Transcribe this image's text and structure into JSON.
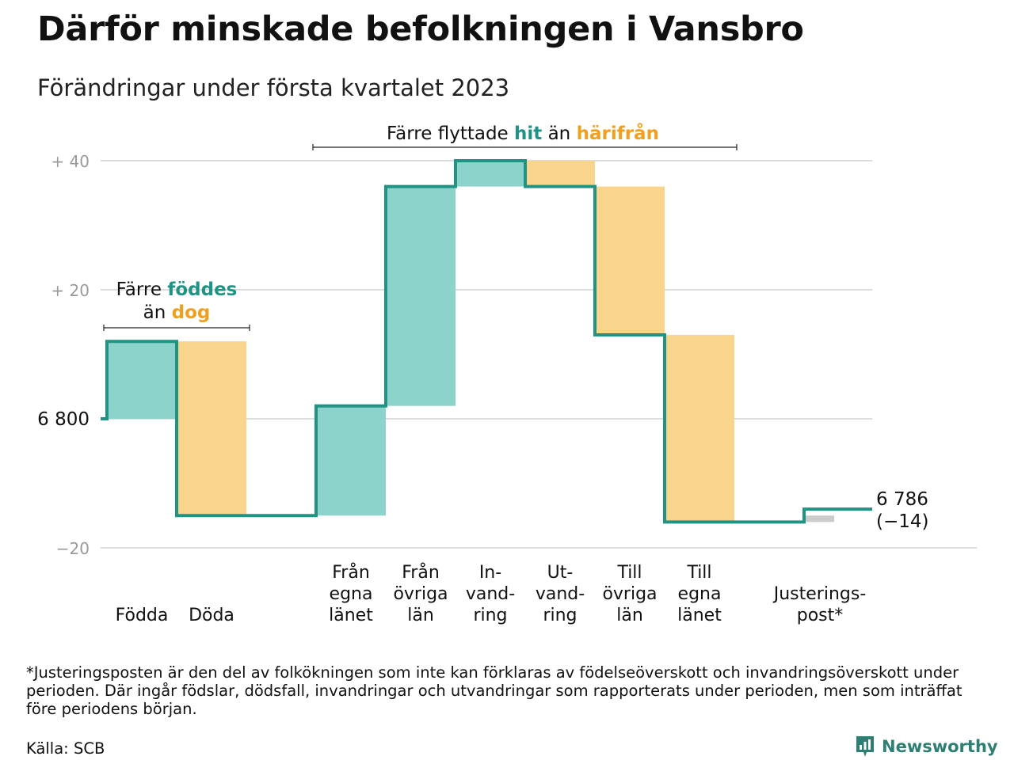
{
  "title": "Därför minskade befolkningen i Vansbro",
  "subtitle": "Förändringar under första kvartalet 2023",
  "colors": {
    "increase_fill": "#8cd4cb",
    "decrease_fill": "#f9d48c",
    "adjustment_fill": "#cccccc",
    "line": "#1f9485",
    "teal_text": "#1f9485",
    "orange_text": "#f0a020",
    "grid": "#dcdcdc",
    "axis_tick_label": "#9a9a9a",
    "brand": "#2e7f73"
  },
  "annotations": {
    "births_deaths": {
      "part1": "Färre ",
      "part2": "föddes",
      "part3": "än ",
      "part4": "dog"
    },
    "migration": {
      "part1": "Färre flyttade ",
      "part2": "hit",
      "part3": " än ",
      "part4": "härifrån"
    }
  },
  "chart_data": {
    "type": "waterfall",
    "title": "Därför minskade befolkningen i Vansbro",
    "subtitle": "Förändringar under första kvartalet 2023",
    "baseline": 6800,
    "baseline_label": "6 800",
    "y_ticks": [
      {
        "value": 40,
        "label": "+ 40"
      },
      {
        "value": 20,
        "label": "+ 20"
      },
      {
        "value": 0,
        "label": "6 800"
      },
      {
        "value": -20,
        "label": "−20"
      }
    ],
    "ylim": [
      -20,
      40
    ],
    "grid": true,
    "steps": [
      {
        "label": [
          "Födda"
        ],
        "change": 12,
        "kind": "increase"
      },
      {
        "label": [
          "Döda"
        ],
        "change": -27,
        "kind": "decrease"
      },
      {
        "label": [
          "Från",
          "egna",
          "länet"
        ],
        "change": 17,
        "kind": "increase"
      },
      {
        "label": [
          "Från",
          "övriga",
          "län"
        ],
        "change": 34,
        "kind": "increase"
      },
      {
        "label": [
          "In-",
          "vand-",
          "ring"
        ],
        "change": 4,
        "kind": "increase"
      },
      {
        "label": [
          "Ut-",
          "vand-",
          "ring"
        ],
        "change": -4,
        "kind": "decrease"
      },
      {
        "label": [
          "Till",
          "övriga",
          "län"
        ],
        "change": -23,
        "kind": "decrease"
      },
      {
        "label": [
          "Till",
          "egna",
          "länet"
        ],
        "change": -29,
        "kind": "decrease"
      },
      {
        "label": [
          "Justerings-",
          "post*"
        ],
        "change": 2,
        "kind": "adjustment"
      }
    ],
    "end_value": 6786,
    "end_label": [
      "6 786",
      "(−14)"
    ]
  },
  "footnote": "*Justeringsposten är den del av folkökningen som inte kan förklaras av födelseöverskott och invandringsöverskott under perioden. Där ingår födslar, dödsfall, invandringar och utvandringar som rapporterats under perioden, men som inträffat före periodens början.",
  "source": "Källa: SCB",
  "brand": {
    "name": "Newsworthy",
    "icon": "newsworthy-logo-icon"
  }
}
